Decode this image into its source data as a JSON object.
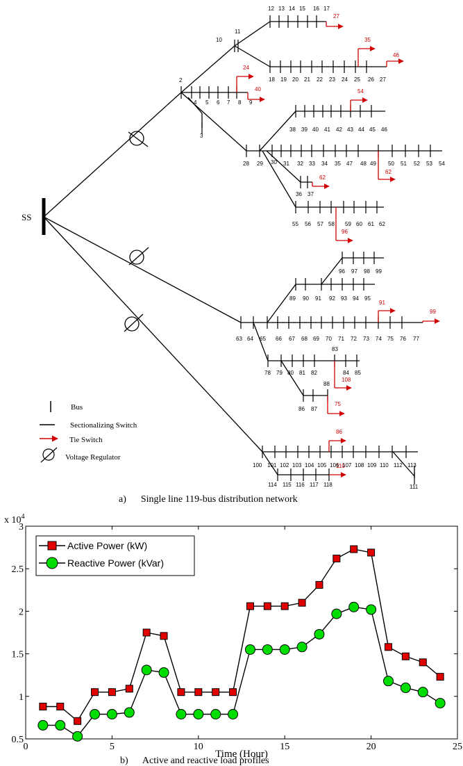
{
  "network": {
    "source_label": "SS",
    "caption": "a)      Single line 119-bus distribution network",
    "legend": {
      "bus": "Bus",
      "sectionalizing_switch": "Sectionalizing Switch",
      "tie_switch": "Tie Switch",
      "voltage_regulator": "Voltage Regulator"
    },
    "tie_color": "#d00000",
    "buses": {
      "b2": "2",
      "b3": "3",
      "b4": "4",
      "b5": "5",
      "b6": "6",
      "b7": "7",
      "b8": "8",
      "b9": "9",
      "b10": "10",
      "b11": "11",
      "b12": "12",
      "b13": "13",
      "b14": "14",
      "b15": "15",
      "b16": "16",
      "b17": "17",
      "b18": "18",
      "b19": "19",
      "b20": "20",
      "b21": "21",
      "b22": "22",
      "b23": "23",
      "b24": "24",
      "b25": "25",
      "b26": "26",
      "b27": "27",
      "b28": "28",
      "b29": "29",
      "b30": "30",
      "b31": "31",
      "b32": "32",
      "b33": "33",
      "b34": "34",
      "b35": "35",
      "b47": "47",
      "b48": "48",
      "b49": "49",
      "b50": "50",
      "b51": "51",
      "b52": "52",
      "b53": "53",
      "b54": "54",
      "b36": "36",
      "b37": "37",
      "b38": "38",
      "b39": "39",
      "b40": "40",
      "b41": "41",
      "b42": "42",
      "b43": "43",
      "b44": "44",
      "b45": "45",
      "b46": "46",
      "b55": "55",
      "b56": "56",
      "b57": "57",
      "b58": "58",
      "b59": "59",
      "b60": "60",
      "b61": "61",
      "b62": "62",
      "b63": "63",
      "b64": "64",
      "b65": "65",
      "b66": "66",
      "b67": "67",
      "b68": "68",
      "b69": "69",
      "b70": "70",
      "b71": "71",
      "b72": "72",
      "b73": "73",
      "b74": "74",
      "b75": "75",
      "b76": "76",
      "b77": "77",
      "b89": "89",
      "b90": "90",
      "b91": "91",
      "b92": "92",
      "b93": "93",
      "b94": "94",
      "b95": "95",
      "b96": "96",
      "b97": "97",
      "b98": "98",
      "b99": "99",
      "b78": "78",
      "b79": "79",
      "b80": "80",
      "b81": "81",
      "b82": "82",
      "b83": "83",
      "b84": "84",
      "b85": "85",
      "b86": "86",
      "b87": "87",
      "b88": "88",
      "b100": "100",
      "b101": "101",
      "b102": "102",
      "b103": "103",
      "b104": "104",
      "b105": "105",
      "b106": "106",
      "b107": "107",
      "b108": "108",
      "b109": "109",
      "b110": "110",
      "b112": "112",
      "b113": "113",
      "b111": "111",
      "b114": "114",
      "b115": "115",
      "b116": "116",
      "b117": "117",
      "b118": "118"
    },
    "ties": {
      "t27": "27",
      "t35": "35",
      "t46": "46",
      "t24": "24",
      "t40": "40",
      "t54": "54",
      "t62a": "62",
      "t62b": "62",
      "t96": "96",
      "t91": "91",
      "t99": "99",
      "t108": "108",
      "t75": "75",
      "t86": "86",
      "t110": "110"
    }
  },
  "chart_data": {
    "type": "line",
    "caption": "b)      Active and reactive load profiles",
    "xlabel": "Time (Hour)",
    "ylabel": "",
    "y_multiplier_label": "x 10",
    "y_multiplier_exp": "4",
    "xlim": [
      0,
      25
    ],
    "ylim": [
      0.5,
      3
    ],
    "xticks": [
      0,
      5,
      10,
      15,
      20,
      25
    ],
    "yticks": [
      0.5,
      1,
      1.5,
      2,
      2.5,
      3
    ],
    "ytick_labels": [
      "0.5",
      "1",
      "1.5",
      "2",
      "2.5",
      "3"
    ],
    "grid": false,
    "legend_position": "top-left",
    "x": [
      1,
      2,
      3,
      4,
      5,
      6,
      7,
      8,
      9,
      10,
      11,
      12,
      13,
      14,
      15,
      16,
      17,
      18,
      19,
      20,
      21,
      22,
      23,
      24
    ],
    "series": [
      {
        "name": "Active Power (kW)",
        "color": "#e00000",
        "marker": "square",
        "values": [
          0.88,
          0.88,
          0.71,
          1.05,
          1.05,
          1.09,
          1.75,
          1.71,
          1.05,
          1.05,
          1.05,
          1.05,
          2.06,
          2.06,
          2.06,
          2.1,
          2.31,
          2.62,
          2.73,
          2.69,
          1.58,
          1.47,
          1.4,
          1.23
        ]
      },
      {
        "name": "Reactive Power (kVar)",
        "color": "#00dd00",
        "marker": "circle",
        "values": [
          0.66,
          0.66,
          0.53,
          0.79,
          0.79,
          0.81,
          1.31,
          1.28,
          0.79,
          0.79,
          0.79,
          0.79,
          1.55,
          1.55,
          1.55,
          1.58,
          1.73,
          1.97,
          2.05,
          2.02,
          1.18,
          1.1,
          1.05,
          0.92
        ]
      }
    ]
  }
}
